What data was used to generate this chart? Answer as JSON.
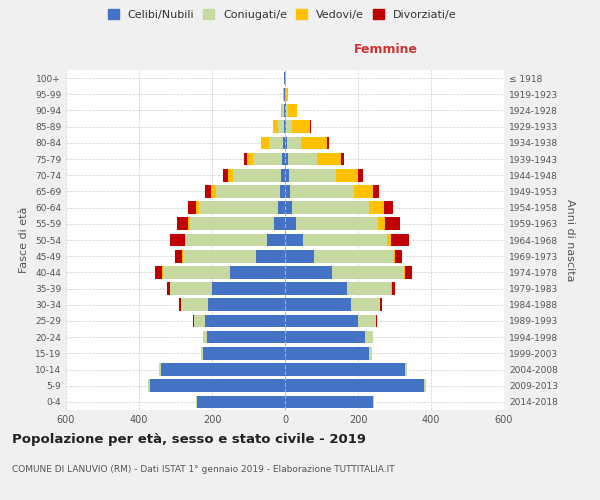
{
  "age_groups": [
    "0-4",
    "5-9",
    "10-14",
    "15-19",
    "20-24",
    "25-29",
    "30-34",
    "35-39",
    "40-44",
    "45-49",
    "50-54",
    "55-59",
    "60-64",
    "65-69",
    "70-74",
    "75-79",
    "80-84",
    "85-89",
    "90-94",
    "95-99",
    "100+"
  ],
  "birth_years": [
    "2014-2018",
    "2009-2013",
    "2004-2008",
    "1999-2003",
    "1994-1998",
    "1989-1993",
    "1984-1988",
    "1979-1983",
    "1974-1978",
    "1969-1973",
    "1964-1968",
    "1959-1963",
    "1954-1958",
    "1949-1953",
    "1944-1948",
    "1939-1943",
    "1934-1938",
    "1929-1933",
    "1924-1928",
    "1919-1923",
    "≤ 1918"
  ],
  "male_celibi": [
    240,
    370,
    340,
    225,
    215,
    220,
    210,
    200,
    150,
    80,
    50,
    30,
    20,
    15,
    12,
    8,
    5,
    3,
    2,
    2,
    2
  ],
  "male_coniugati": [
    3,
    5,
    5,
    5,
    10,
    30,
    75,
    115,
    185,
    200,
    220,
    230,
    215,
    175,
    130,
    80,
    40,
    15,
    5,
    2,
    0
  ],
  "male_vedovi": [
    0,
    0,
    0,
    0,
    0,
    0,
    0,
    0,
    2,
    3,
    5,
    5,
    10,
    12,
    15,
    15,
    20,
    15,
    5,
    2,
    0
  ],
  "male_divorziati": [
    0,
    0,
    0,
    0,
    0,
    2,
    5,
    8,
    18,
    18,
    40,
    30,
    22,
    18,
    12,
    8,
    2,
    0,
    0,
    0,
    0
  ],
  "female_celibi": [
    240,
    380,
    330,
    230,
    220,
    200,
    180,
    170,
    130,
    80,
    50,
    30,
    20,
    15,
    10,
    8,
    5,
    3,
    2,
    1,
    1
  ],
  "female_coniugati": [
    3,
    5,
    5,
    8,
    20,
    50,
    80,
    120,
    195,
    215,
    230,
    225,
    210,
    175,
    130,
    80,
    40,
    15,
    5,
    1,
    0
  ],
  "female_vedovi": [
    0,
    0,
    0,
    0,
    0,
    0,
    0,
    2,
    3,
    5,
    10,
    20,
    40,
    50,
    60,
    65,
    70,
    50,
    25,
    5,
    2
  ],
  "female_divorziati": [
    0,
    0,
    0,
    0,
    0,
    2,
    5,
    8,
    20,
    20,
    50,
    40,
    25,
    18,
    15,
    10,
    5,
    2,
    0,
    0,
    0
  ],
  "colors": {
    "celibi": "#4472c4",
    "coniugati": "#c5d9a0",
    "vedovi": "#ffc000",
    "divorziati": "#c00000"
  },
  "title": "Popolazione per età, sesso e stato civile - 2019",
  "subtitle": "COMUNE DI LANUVIO (RM) - Dati ISTAT 1° gennaio 2019 - Elaborazione TUTTITALIA.IT",
  "ylabel_left": "Fasce di età",
  "ylabel_right": "Anni di nascita",
  "xlabel_right": "Femmine",
  "xlim": 600,
  "background_color": "#f0f0f0",
  "plot_bg": "#ffffff",
  "grid_color": "#cccccc"
}
